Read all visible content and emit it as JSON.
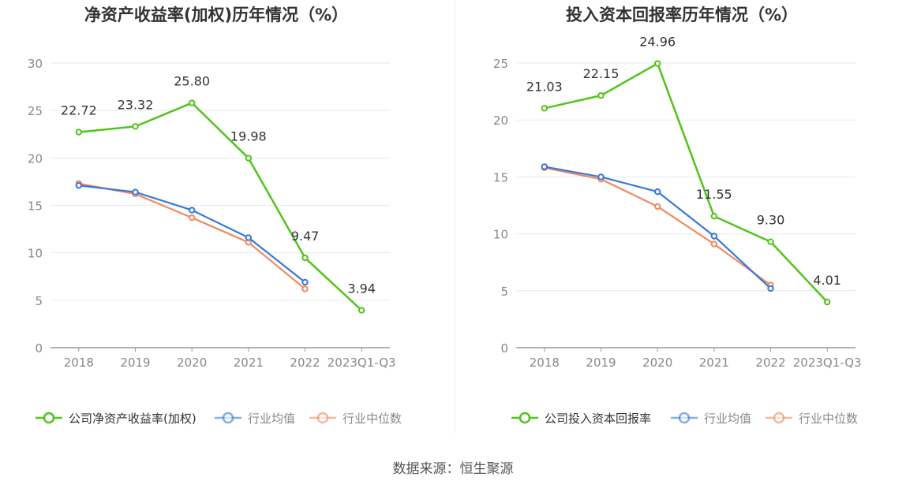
{
  "source_text": "数据来源：恒生聚源",
  "colors": {
    "company": "#52c41a",
    "industry_avg": "#3a78d6",
    "industry_median": "#f08a62",
    "grid": "#e6e9f2",
    "axis": "#999999",
    "tick_text": "#888888",
    "title": "#333333"
  },
  "chart_data": [
    {
      "type": "line",
      "title": "净资产收益率(加权)历年情况（%）",
      "categories": [
        "2018",
        "2019",
        "2020",
        "2021",
        "2022",
        "2023Q1-Q3"
      ],
      "ylim": [
        0,
        30
      ],
      "yticks": [
        0,
        5,
        10,
        15,
        20,
        25,
        30
      ],
      "grid": true,
      "legend_position": "bottom",
      "series": [
        {
          "name": "公司净资产收益率(加权)",
          "color_key": "company",
          "values": [
            22.72,
            23.32,
            25.8,
            19.98,
            9.47,
            3.94
          ],
          "labels": [
            "22.72",
            "23.32",
            "25.80",
            "19.98",
            "9.47",
            "3.94"
          ]
        },
        {
          "name": "行业均值",
          "color_key": "industry_avg",
          "values": [
            17.1,
            16.4,
            14.5,
            11.6,
            6.9,
            null
          ]
        },
        {
          "name": "行业中位数",
          "color_key": "industry_median",
          "values": [
            17.3,
            16.2,
            13.7,
            11.1,
            6.2,
            null
          ]
        }
      ]
    },
    {
      "type": "line",
      "title": "投入资本回报率历年情况（%）",
      "categories": [
        "2018",
        "2019",
        "2020",
        "2021",
        "2022",
        "2023Q1-Q3"
      ],
      "ylim": [
        0,
        25
      ],
      "yticks": [
        0,
        5,
        10,
        15,
        20,
        25
      ],
      "grid": true,
      "legend_position": "bottom",
      "series": [
        {
          "name": "公司投入资本回报率",
          "color_key": "company",
          "values": [
            21.03,
            22.15,
            24.96,
            11.55,
            9.3,
            4.01
          ],
          "labels": [
            "21.03",
            "22.15",
            "24.96",
            "11.55",
            "9.30",
            "4.01"
          ]
        },
        {
          "name": "行业均值",
          "color_key": "industry_avg",
          "values": [
            15.9,
            15.0,
            13.7,
            9.8,
            5.2,
            null
          ]
        },
        {
          "name": "行业中位数",
          "color_key": "industry_median",
          "values": [
            15.8,
            14.8,
            12.4,
            9.1,
            5.5,
            null
          ]
        }
      ]
    }
  ]
}
